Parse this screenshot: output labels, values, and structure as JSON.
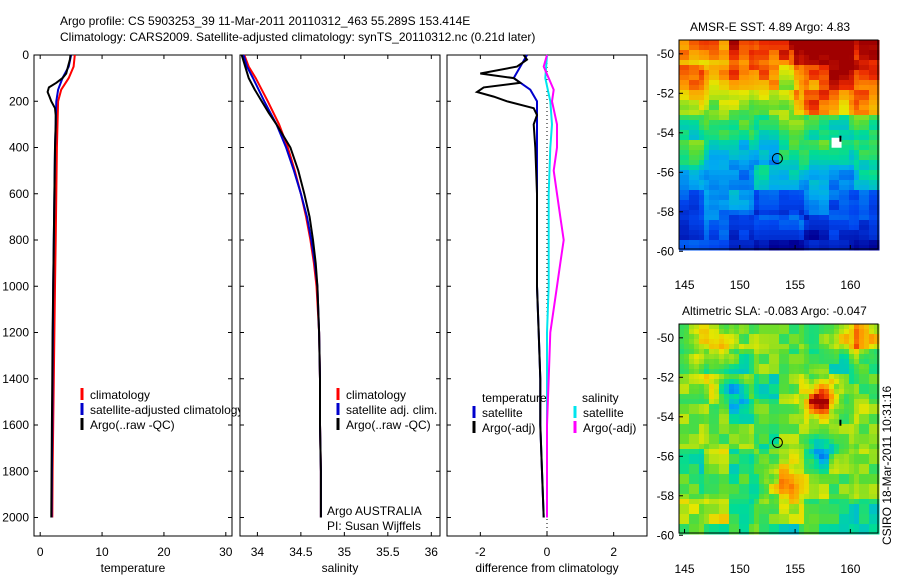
{
  "header": {
    "line1": "Argo profile: CS 5903253_39 11-Mar-2011 20110312_463 55.289S 153.414E",
    "line2": "Climatology: CARS2009. Satellite-adjusted climatology: synTS_20110312.nc (0.21d later)"
  },
  "colors": {
    "climatology": "#ff0000",
    "satellite": "#0000cc",
    "argo": "#000000",
    "sat_salinity": "#00e5ee",
    "argo_salinity_adj": "#ff00ff"
  },
  "chart_data": [
    {
      "type": "line",
      "xlabel": "temperature",
      "ylabel": "",
      "xlim": [
        -1,
        31
      ],
      "ylim": [
        2080,
        0
      ],
      "y_reversed": true,
      "xticks": [
        0,
        10,
        20,
        30
      ],
      "yticks": [
        0,
        200,
        400,
        600,
        800,
        1000,
        1200,
        1400,
        1600,
        1800,
        2000
      ],
      "legend": [
        "climatology",
        "satellite-adjusted climatology",
        "Argo(..raw -QC)"
      ],
      "series": [
        {
          "name": "climatology",
          "color": "#ff0000",
          "depth": [
            0,
            50,
            100,
            150,
            200,
            300,
            400,
            600,
            800,
            1000,
            1200,
            1400,
            1600,
            1800,
            2000
          ],
          "values": [
            5.6,
            5.4,
            4.6,
            3.4,
            2.9,
            2.8,
            2.7,
            2.6,
            2.5,
            2.4,
            2.3,
            2.2,
            2.1,
            2.0,
            1.95
          ]
        },
        {
          "name": "satellite-adjusted climatology",
          "color": "#0000cc",
          "depth": [
            0,
            50,
            100,
            150,
            200,
            300,
            400,
            600,
            800,
            1000,
            1200,
            1400,
            1600,
            1800,
            2000
          ],
          "values": [
            5.0,
            4.6,
            3.6,
            2.9,
            2.6,
            2.5,
            2.4,
            2.3,
            2.2,
            2.1,
            2.05,
            2.0,
            1.95,
            1.9,
            1.85
          ]
        },
        {
          "name": "Argo(..raw -QC)",
          "color": "#000000",
          "depth": [
            0,
            20,
            50,
            80,
            100,
            120,
            140,
            160,
            180,
            200,
            230,
            260,
            300,
            400,
            600,
            800,
            1000,
            1200,
            1400,
            1600,
            1800,
            2000
          ],
          "values": [
            4.9,
            4.8,
            4.5,
            4.2,
            3.6,
            2.6,
            1.4,
            1.2,
            1.5,
            1.8,
            2.4,
            2.5,
            2.5,
            2.4,
            2.3,
            2.2,
            2.1,
            2.0,
            1.95,
            1.9,
            1.85,
            1.8
          ]
        }
      ]
    },
    {
      "type": "line",
      "xlabel": "salinity",
      "ylabel": "",
      "xlim": [
        33.8,
        36.1
      ],
      "ylim": [
        2080,
        0
      ],
      "y_reversed": true,
      "xticks": [
        34,
        34.5,
        35,
        35.5,
        36
      ],
      "legend": [
        "climatology",
        "satellite adj. clim.",
        "Argo(..raw -QC)"
      ],
      "annotations": [
        "Argo AUSTRALIA",
        "PI: Susan Wijffels"
      ],
      "series": [
        {
          "name": "climatology",
          "color": "#ff0000",
          "depth": [
            0,
            50,
            100,
            200,
            300,
            400,
            500,
            600,
            700,
            800,
            900,
            1000,
            1200,
            1400,
            1600,
            1800,
            2000
          ],
          "values": [
            33.85,
            33.9,
            33.98,
            34.12,
            34.25,
            34.35,
            34.43,
            34.5,
            34.56,
            34.61,
            34.65,
            34.68,
            34.71,
            34.72,
            34.72,
            34.73,
            34.73
          ]
        },
        {
          "name": "satellite adj. clim.",
          "color": "#0000cc",
          "depth": [
            0,
            50,
            100,
            200,
            300,
            400,
            500,
            600,
            700,
            800,
            900,
            1000,
            1200,
            1400,
            1600,
            1800,
            2000
          ],
          "values": [
            33.84,
            33.88,
            33.95,
            34.08,
            34.22,
            34.33,
            34.42,
            34.5,
            34.57,
            34.62,
            34.66,
            34.69,
            34.71,
            34.72,
            34.72,
            34.73,
            34.73
          ]
        },
        {
          "name": "Argo(..raw -QC)",
          "color": "#000000",
          "depth": [
            0,
            50,
            100,
            150,
            200,
            250,
            300,
            400,
            500,
            600,
            700,
            800,
            900,
            1000,
            1200,
            1400,
            1600,
            1800,
            2000
          ],
          "values": [
            33.82,
            33.86,
            33.9,
            33.97,
            34.05,
            34.13,
            34.22,
            34.38,
            34.47,
            34.54,
            34.6,
            34.64,
            34.67,
            34.69,
            34.71,
            34.72,
            34.72,
            34.73,
            34.73
          ]
        }
      ]
    },
    {
      "type": "line",
      "xlabel": "difference from climatology",
      "ylabel": "",
      "xlim": [
        -3,
        3
      ],
      "ylim": [
        2080,
        0
      ],
      "y_reversed": true,
      "xticks": [
        -2,
        0,
        2
      ],
      "legend_temperature_title": "temperature",
      "legend_salinity_title": "salinity",
      "legend": [
        "satellite",
        "Argo(-adj)",
        "satellite",
        "Argo(-adj)"
      ],
      "series": [
        {
          "name": "temperature satellite",
          "color": "#0000cc",
          "depth": [
            0,
            50,
            100,
            150,
            200,
            300,
            400,
            600,
            800,
            1000,
            1200,
            1400,
            1600,
            1800,
            2000
          ],
          "values": [
            -0.6,
            -0.8,
            -1.0,
            -0.5,
            -0.3,
            -0.3,
            -0.3,
            -0.3,
            -0.3,
            -0.3,
            -0.25,
            -0.2,
            -0.2,
            -0.15,
            -0.1
          ]
        },
        {
          "name": "temperature Argo(-adj)",
          "color": "#000000",
          "depth": [
            0,
            20,
            50,
            80,
            100,
            120,
            140,
            160,
            180,
            200,
            230,
            260,
            300,
            400,
            600,
            800,
            1000,
            1200,
            1400,
            1600,
            1800,
            2000
          ],
          "values": [
            -0.7,
            -0.6,
            -0.9,
            -2.0,
            -1.0,
            -0.8,
            -1.9,
            -2.1,
            -1.6,
            -1.2,
            -0.4,
            -0.3,
            -0.4,
            -0.35,
            -0.3,
            -0.3,
            -0.3,
            -0.25,
            -0.2,
            -0.2,
            -0.15,
            -0.1
          ]
        },
        {
          "name": "salinity satellite",
          "color": "#00e5ee",
          "depth": [
            0,
            100,
            200,
            300,
            400,
            600,
            800,
            1000,
            1200,
            1400,
            1600,
            1800,
            2000
          ],
          "values": [
            0.0,
            -0.05,
            0.1,
            0.15,
            0.1,
            0.05,
            0.05,
            0.05,
            0.0,
            0.0,
            0.0,
            0.0,
            0.0
          ]
        },
        {
          "name": "salinity Argo(-adj)",
          "color": "#ff00ff",
          "depth": [
            0,
            50,
            100,
            150,
            200,
            300,
            400,
            500,
            600,
            700,
            800,
            900,
            1000,
            1200,
            1400,
            1600,
            1800,
            2000
          ],
          "values": [
            0.0,
            -0.1,
            0.05,
            0.2,
            0.15,
            0.3,
            0.3,
            0.2,
            0.3,
            0.4,
            0.5,
            0.4,
            0.3,
            0.1,
            0.05,
            0.0,
            0.0,
            0.0
          ]
        }
      ]
    },
    {
      "type": "heatmap",
      "title": "AMSR-E SST: 4.89 Argo: 4.83",
      "xlim": [
        144.5,
        162.5
      ],
      "ylim": [
        -61,
        -49.3
      ],
      "xticks": [
        145,
        150,
        155,
        160
      ],
      "yticks": [
        -50,
        -52,
        -54,
        -56,
        -58,
        -60
      ],
      "marker_circle": [
        153.4,
        -55.3
      ]
    },
    {
      "type": "heatmap",
      "title": "Altimetric SLA: -0.083 Argo: -0.047",
      "xlim": [
        144.5,
        162.5
      ],
      "ylim": [
        -61,
        -49.3
      ],
      "xticks": [
        145,
        150,
        155,
        160
      ],
      "yticks": [
        -50,
        -52,
        -54,
        -56,
        -58,
        -60
      ],
      "marker_circle": [
        153.4,
        -55.3
      ]
    }
  ],
  "side_label": "CSIRO 18-Mar-2011 10:31:16"
}
